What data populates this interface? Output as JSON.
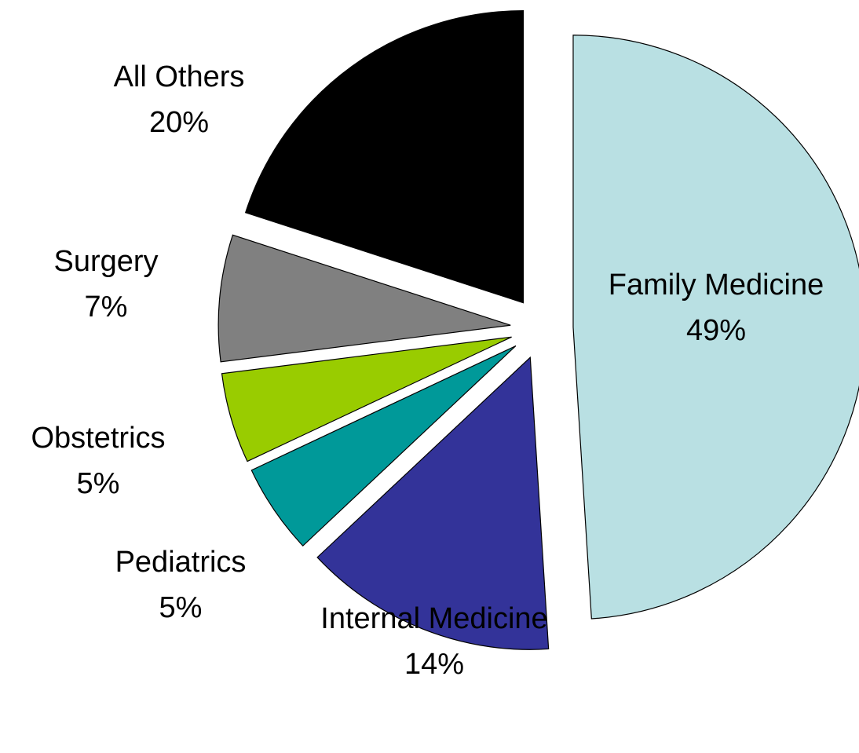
{
  "chart_data": {
    "type": "pie",
    "categories": [
      "Family Medicine",
      "Internal Medicine",
      "Pediatrics",
      "Obstetrics",
      "Surgery",
      "All Others"
    ],
    "values": [
      49,
      14,
      5,
      5,
      7,
      20
    ],
    "value_labels": [
      "49%",
      "14%",
      "5%",
      "5%",
      "7%",
      "20%"
    ],
    "colors": [
      "#b9e0e3",
      "#333399",
      "#009999",
      "#99cc00",
      "#808080",
      "#000000"
    ]
  }
}
